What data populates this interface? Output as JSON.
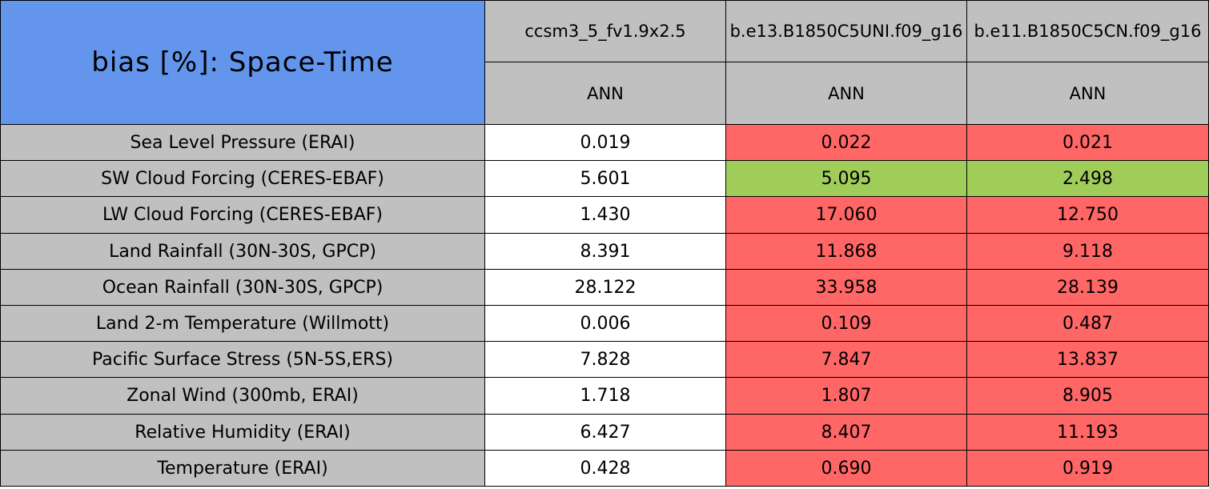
{
  "table": {
    "title": "bias [%]: Space-Time",
    "title_color": "#6495ed",
    "header_color": "#c0c0c0",
    "columns": [
      "ccsm3_5_fv1.9x2.5",
      "b.e13.B1850C5UNI.f09_g16",
      "b.e11.B1850C5CN.f09_g16"
    ],
    "seasons": [
      "ANN",
      "ANN",
      "ANN"
    ],
    "rows": [
      {
        "label": "Sea Level Pressure (ERAI)",
        "values": [
          "0.019",
          "0.022",
          "0.021"
        ],
        "colors": [
          "#ffffff",
          "#ff6666",
          "#ff6666"
        ]
      },
      {
        "label": "SW Cloud Forcing (CERES-EBAF)",
        "values": [
          "5.601",
          "5.095",
          "2.498"
        ],
        "colors": [
          "#ffffff",
          "#a0cc5a",
          "#a0cc5a"
        ]
      },
      {
        "label": "LW Cloud Forcing (CERES-EBAF)",
        "values": [
          "1.430",
          "17.060",
          "12.750"
        ],
        "colors": [
          "#ffffff",
          "#ff6666",
          "#ff6666"
        ]
      },
      {
        "label": "Land Rainfall (30N-30S, GPCP)",
        "values": [
          "8.391",
          "11.868",
          "9.118"
        ],
        "colors": [
          "#ffffff",
          "#ff6666",
          "#ff6666"
        ]
      },
      {
        "label": "Ocean Rainfall (30N-30S, GPCP)",
        "values": [
          "28.122",
          "33.958",
          "28.139"
        ],
        "colors": [
          "#ffffff",
          "#ff6666",
          "#ff6666"
        ]
      },
      {
        "label": "Land 2-m Temperature (Willmott)",
        "values": [
          "0.006",
          "0.109",
          "0.487"
        ],
        "colors": [
          "#ffffff",
          "#ff6666",
          "#ff6666"
        ]
      },
      {
        "label": "Pacific Surface Stress (5N-5S,ERS)",
        "values": [
          "7.828",
          "7.847",
          "13.837"
        ],
        "colors": [
          "#ffffff",
          "#ff6666",
          "#ff6666"
        ]
      },
      {
        "label": "Zonal Wind (300mb, ERAI)",
        "values": [
          "1.718",
          "1.807",
          "8.905"
        ],
        "colors": [
          "#ffffff",
          "#ff6666",
          "#ff6666"
        ]
      },
      {
        "label": "Relative Humidity (ERAI)",
        "values": [
          "6.427",
          "8.407",
          "11.193"
        ],
        "colors": [
          "#ffffff",
          "#ff6666",
          "#ff6666"
        ]
      },
      {
        "label": "Temperature (ERAI)",
        "values": [
          "0.428",
          "0.690",
          "0.919"
        ],
        "colors": [
          "#ffffff",
          "#ff6666",
          "#ff6666"
        ]
      }
    ]
  }
}
